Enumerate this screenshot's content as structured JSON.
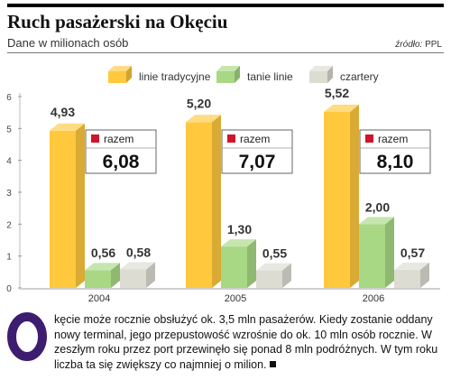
{
  "header": {
    "title": "Ruch pasażerski na Okęciu",
    "subtitle": "Dane w milionach osób",
    "source_label": "źródło:",
    "source_value": "PPL"
  },
  "colors": {
    "linie_tradycyjne": "#ffc83d",
    "tanie_linie": "#a8d884",
    "czartery": "#dcdcd2",
    "razem_marker": "#d0142b",
    "dropcap": "#3d1d70"
  },
  "chart_data": {
    "type": "bar",
    "categories": [
      "2004",
      "2005",
      "2006"
    ],
    "series": [
      {
        "name": "linie tradycyjne",
        "values": [
          4.93,
          5.2,
          5.52
        ],
        "labels": [
          "4,93",
          "5,20",
          "5,52"
        ]
      },
      {
        "name": "tanie linie",
        "values": [
          0.56,
          1.3,
          2.0
        ],
        "labels": [
          "0,56",
          "1,30",
          "2,00"
        ]
      },
      {
        "name": "czartery",
        "values": [
          0.58,
          0.55,
          0.57
        ],
        "labels": [
          "0,58",
          "0,55",
          "0,57"
        ]
      }
    ],
    "totals": {
      "label": "razem",
      "values": [
        6.08,
        7.07,
        8.1
      ],
      "labels": [
        "6,08",
        "7,07",
        "8,10"
      ]
    },
    "ylim": [
      0,
      6
    ],
    "yticks": [
      "0",
      "1",
      "2",
      "3",
      "4",
      "5",
      "6"
    ],
    "legend_position": "top",
    "grid": false,
    "style": "3d"
  },
  "article": {
    "dropcap": "O",
    "text": "kęcie może rocznie obsłużyć ok. 3,5 mln pasażerów. Kiedy zostanie oddany nowy terminal, jego przepustowość wzrośnie do ok. 10 mln osób rocznie. W zeszłym roku przez port przewinęło się ponad 8 mln podróżnych. W tym roku liczba ta się zwiększy co najmniej o milion."
  }
}
